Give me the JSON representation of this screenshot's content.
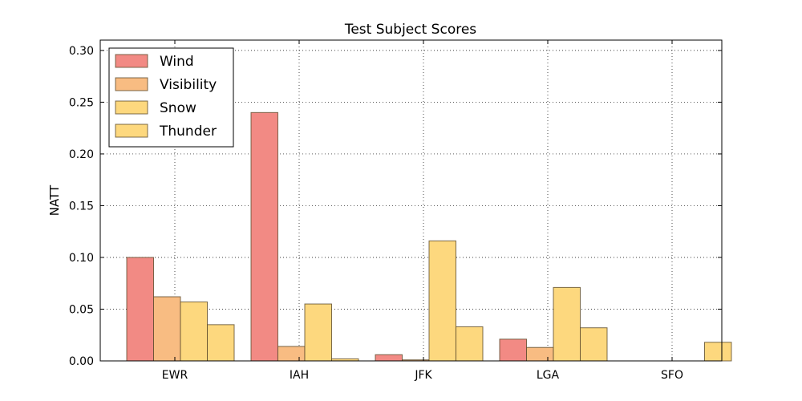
{
  "chart_data": {
    "type": "bar",
    "title": "Test Subject Scores",
    "xlabel": "",
    "ylabel": "NATT",
    "categories": [
      "EWR",
      "IAH",
      "JFK",
      "LGA",
      "SFO"
    ],
    "series": [
      {
        "name": "Wind",
        "color": "#f28a84",
        "values": [
          0.1,
          0.24,
          0.006,
          0.021,
          0.0
        ]
      },
      {
        "name": "Visibility",
        "color": "#f8bc82",
        "values": [
          0.062,
          0.014,
          0.001,
          0.013,
          0.0
        ]
      },
      {
        "name": "Snow",
        "color": "#fdd87e",
        "values": [
          0.057,
          0.055,
          0.116,
          0.071,
          0.0
        ]
      },
      {
        "name": "Thunder",
        "color": "#fdd87e",
        "values": [
          0.035,
          0.002,
          0.033,
          0.032,
          0.018
        ]
      }
    ],
    "ylim": [
      0,
      0.31
    ],
    "yticks": [
      "0.00",
      "0.05",
      "0.10",
      "0.15",
      "0.20",
      "0.25",
      "0.30"
    ],
    "grid": true,
    "legend_position": "top-left"
  }
}
